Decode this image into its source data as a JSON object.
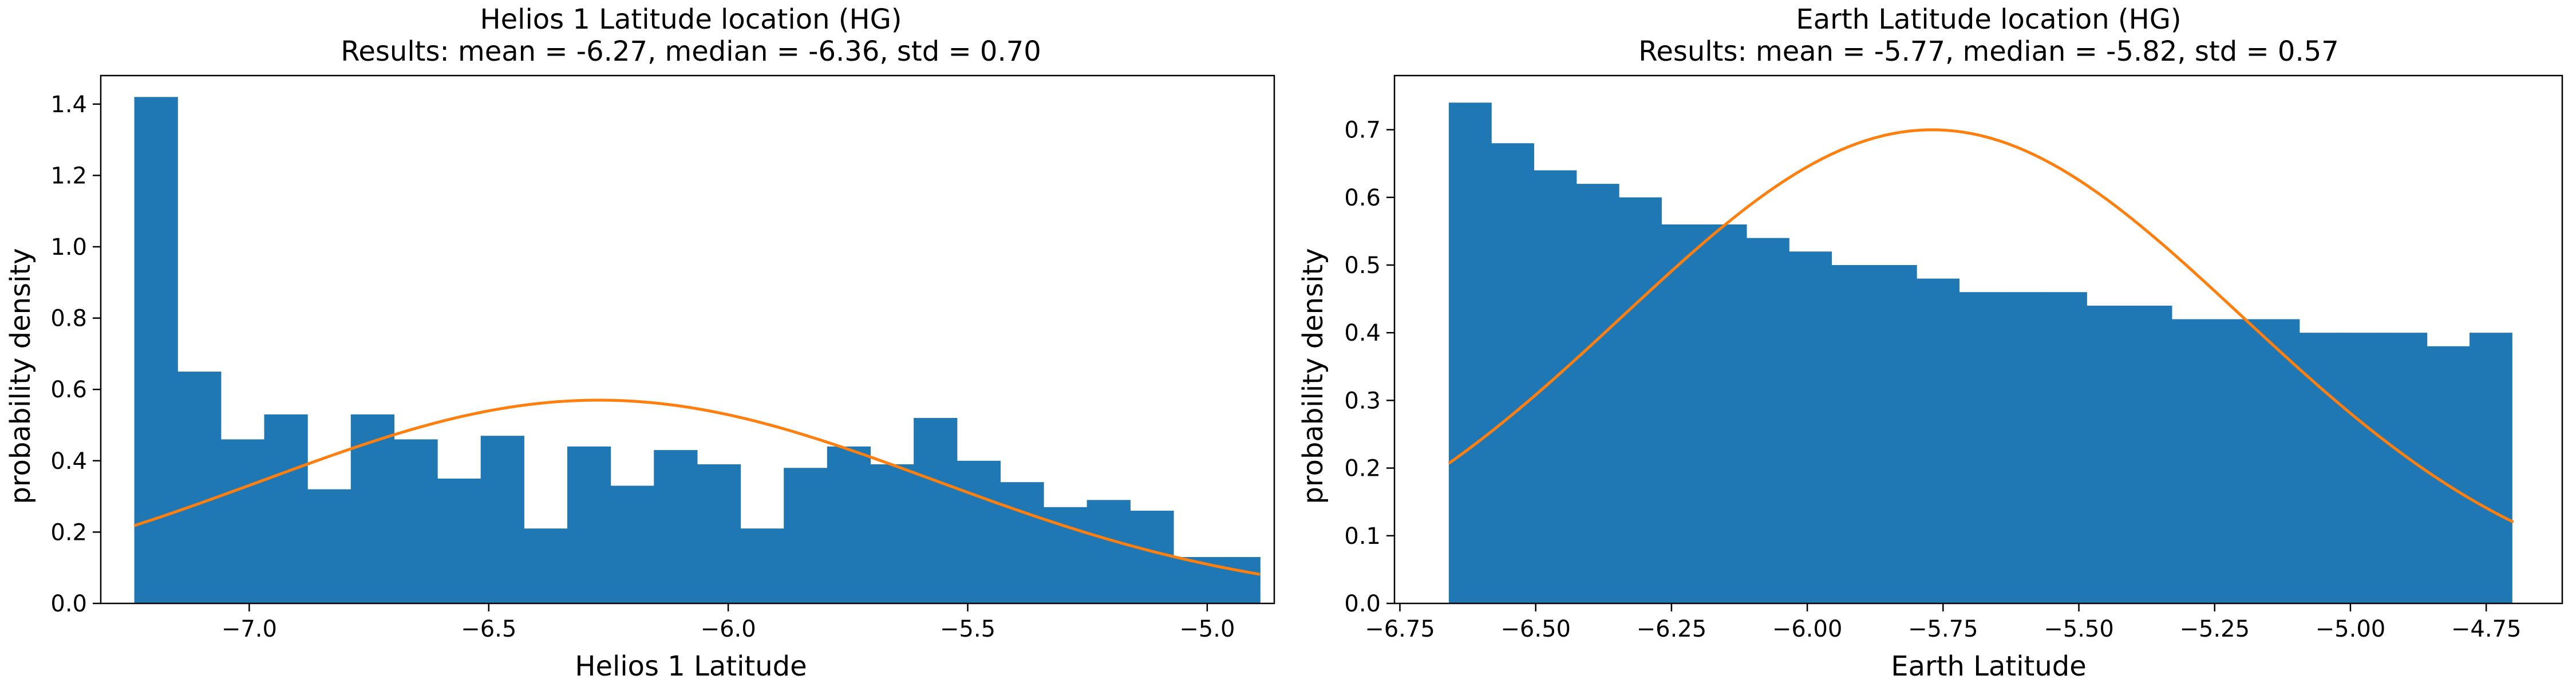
{
  "colors": {
    "bar": "#1f77b4",
    "fit": "#ff7f0e",
    "axis": "#000000",
    "background": "#ffffff"
  },
  "chart_data": [
    {
      "type": "bar",
      "title": "Helios 1 Latitude location (HG)",
      "subtitle": "Results: mean = -6.27, median = -6.36, std = 0.70",
      "xlabel": "Helios 1 Latitude",
      "ylabel": "probability density",
      "xlim": [
        -7.31,
        -4.86
      ],
      "ylim": [
        0,
        1.48
      ],
      "grid": false,
      "xticks": [
        -7.0,
        -6.5,
        -6.0,
        -5.5,
        -5.0
      ],
      "xtick_labels": [
        "−7.0",
        "−6.5",
        "−6.0",
        "−5.5",
        "−5.0"
      ],
      "yticks": [
        0.0,
        0.2,
        0.4,
        0.6,
        0.8,
        1.0,
        1.2,
        1.4
      ],
      "ytick_labels": [
        "0.0",
        "0.2",
        "0.4",
        "0.6",
        "0.8",
        "1.0",
        "1.2",
        "1.4"
      ],
      "hist": {
        "bin_start": -7.24,
        "bin_width": 0.0904,
        "values": [
          1.42,
          0.65,
          0.46,
          0.53,
          0.32,
          0.53,
          0.46,
          0.35,
          0.47,
          0.21,
          0.44,
          0.33,
          0.43,
          0.39,
          0.21,
          0.38,
          0.44,
          0.39,
          0.52,
          0.4,
          0.34,
          0.27,
          0.29,
          0.26,
          0.13,
          0.13
        ]
      },
      "fit": {
        "kind": "normal",
        "mean": -6.27,
        "std": 0.7,
        "x_range": [
          -7.24,
          -4.89
        ]
      }
    },
    {
      "type": "bar",
      "title": "Earth Latitude location (HG)",
      "subtitle": "Results: mean = -5.77, median = -5.82, std = 0.57",
      "xlabel": "Earth Latitude",
      "ylabel": "probability density",
      "xlim": [
        -6.76,
        -4.61
      ],
      "ylim": [
        0,
        0.78
      ],
      "grid": false,
      "xticks": [
        -6.75,
        -6.5,
        -6.25,
        -6.0,
        -5.75,
        -5.5,
        -5.25,
        -5.0,
        -4.75
      ],
      "xtick_labels": [
        "−6.75",
        "−6.50",
        "−6.25",
        "−6.00",
        "−5.75",
        "−5.50",
        "−5.25",
        "−5.00",
        "−4.75"
      ],
      "yticks": [
        0.0,
        0.1,
        0.2,
        0.3,
        0.4,
        0.5,
        0.6,
        0.7
      ],
      "ytick_labels": [
        "0.0",
        "0.1",
        "0.2",
        "0.3",
        "0.4",
        "0.5",
        "0.6",
        "0.7"
      ],
      "hist": {
        "bin_start": -6.66,
        "bin_width": 0.0783,
        "values": [
          0.74,
          0.68,
          0.64,
          0.62,
          0.6,
          0.56,
          0.56,
          0.54,
          0.52,
          0.5,
          0.5,
          0.48,
          0.46,
          0.46,
          0.46,
          0.44,
          0.44,
          0.42,
          0.42,
          0.42,
          0.4,
          0.4,
          0.4,
          0.38,
          0.4
        ]
      },
      "fit": {
        "kind": "normal",
        "mean": -5.77,
        "std": 0.57,
        "x_range": [
          -6.66,
          -4.7
        ]
      }
    }
  ]
}
